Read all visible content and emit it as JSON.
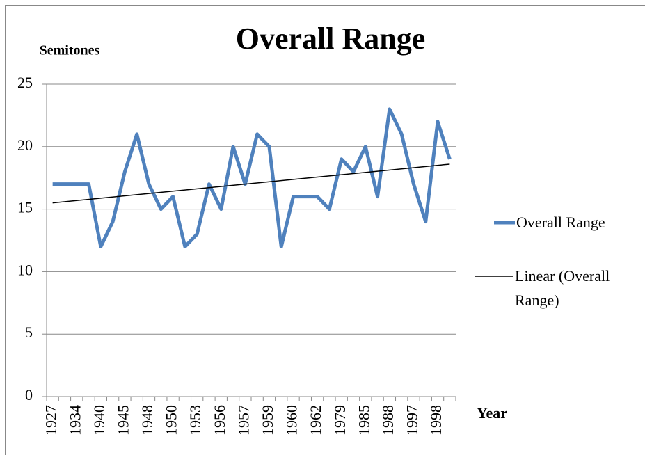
{
  "chart_data": {
    "type": "line",
    "title": "Overall Range",
    "y_label": "Semitones",
    "x_label": "Year",
    "categories": [
      "1927",
      null,
      "1934",
      null,
      "1940",
      null,
      "1945",
      null,
      "1948",
      null,
      "1950",
      null,
      "1953",
      null,
      "1956",
      null,
      "1957",
      null,
      "1959",
      null,
      "1960",
      null,
      "1962",
      null,
      "1979",
      null,
      "1985",
      null,
      "1988",
      null,
      "1997",
      null,
      "1998",
      null
    ],
    "series": [
      {
        "name": "Overall Range",
        "color": "#4f81bd",
        "values": [
          17,
          17,
          17,
          17,
          12,
          14,
          18,
          21,
          17,
          15,
          16,
          12,
          13,
          17,
          15,
          20,
          17,
          21,
          20,
          12,
          16,
          16,
          16,
          15,
          19,
          18,
          20,
          16,
          23,
          21,
          17,
          14,
          22,
          19
        ]
      },
      {
        "name": "Linear (Overall Range)",
        "color": "#000000",
        "trend": {
          "start": 15.5,
          "end": 18.6
        }
      }
    ],
    "ylim": [
      0,
      25
    ],
    "yticks": [
      0,
      5,
      10,
      15,
      20,
      25
    ],
    "grid": true,
    "legend": "right"
  }
}
